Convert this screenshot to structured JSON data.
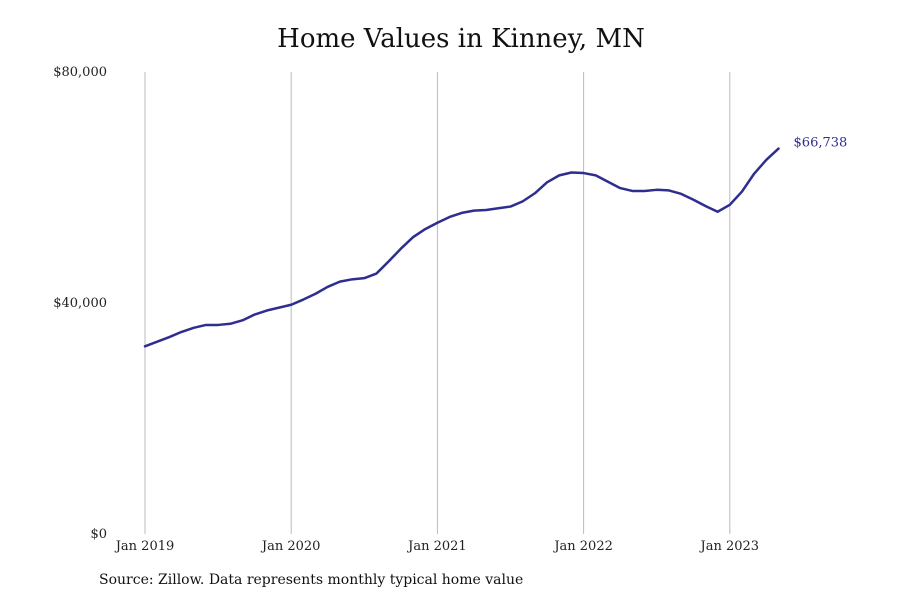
{
  "chart_data": {
    "type": "line",
    "title": "Home Values in Kinney, MN",
    "xlabel": "",
    "ylabel": "",
    "ylim": [
      0,
      80000
    ],
    "y_ticks": [
      {
        "value": 0,
        "label": "$0"
      },
      {
        "value": 40000,
        "label": "$40,000"
      },
      {
        "value": 80000,
        "label": "$80,000"
      }
    ],
    "x_ticks": [
      {
        "value": "2019-01",
        "label": "Jan 2019"
      },
      {
        "value": "2020-01",
        "label": "Jan 2020"
      },
      {
        "value": "2021-01",
        "label": "Jan 2021"
      },
      {
        "value": "2022-01",
        "label": "Jan 2022"
      },
      {
        "value": "2023-01",
        "label": "Jan 2023"
      }
    ],
    "x_range": [
      "2019-01",
      "2024-01"
    ],
    "grid": "vertical lines at year ticks",
    "line_color": "#2e2e8f",
    "grid_color": "#bbbbbb",
    "end_label": "$66,738",
    "series": [
      {
        "x": [
          "2019-01",
          "2019-02",
          "2019-03",
          "2019-04",
          "2019-05",
          "2019-06",
          "2019-07",
          "2019-08",
          "2019-09",
          "2019-10",
          "2019-11",
          "2019-12",
          "2020-01",
          "2020-02",
          "2020-03",
          "2020-04",
          "2020-05",
          "2020-06",
          "2020-07",
          "2020-08",
          "2020-09",
          "2020-10",
          "2020-11",
          "2020-12",
          "2021-01",
          "2021-02",
          "2021-03",
          "2021-04",
          "2021-05",
          "2021-06",
          "2021-07",
          "2021-08",
          "2021-09",
          "2021-10",
          "2021-11",
          "2021-12",
          "2022-01",
          "2022-02",
          "2022-03",
          "2022-04",
          "2022-05",
          "2022-06",
          "2022-07",
          "2022-08",
          "2022-09",
          "2022-10",
          "2022-11",
          "2022-12",
          "2023-01",
          "2023-02",
          "2023-03",
          "2023-04",
          "2023-05"
        ],
        "values": [
          32500,
          33300,
          34100,
          35000,
          35700,
          36200,
          36200,
          36400,
          37000,
          38000,
          38700,
          39200,
          39700,
          40600,
          41600,
          42800,
          43700,
          44100,
          44300,
          45100,
          47200,
          49400,
          51400,
          52800,
          53900,
          54900,
          55600,
          56000,
          56100,
          56400,
          56700,
          57600,
          59000,
          60900,
          62100,
          62600,
          62500,
          62100,
          61000,
          59900,
          59400,
          59400,
          59600,
          59500,
          58900,
          57900,
          56800,
          55800,
          57000,
          59300,
          62400,
          64800,
          66738
        ]
      }
    ]
  },
  "source_note": "Source: Zillow. Data represents monthly typical home value"
}
